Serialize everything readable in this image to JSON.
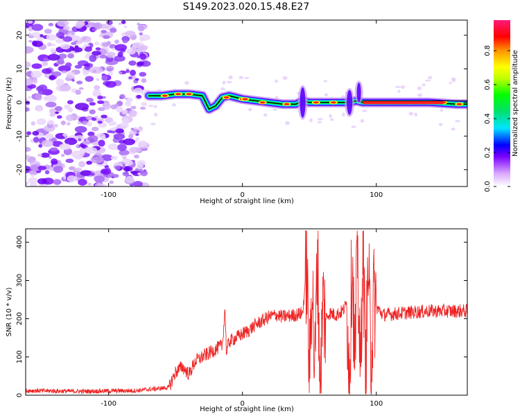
{
  "title": "S149.2023.020.15.48.E27",
  "chart_data": [
    {
      "type": "heatmap",
      "xlabel": "Height of straight line (km)",
      "ylabel": "Frequency (Hz)",
      "xlim": [
        -162,
        168
      ],
      "ylim": [
        -25,
        24.5
      ],
      "x_ticks": [
        -100,
        0,
        100
      ],
      "x_tick_labels": [
        "-100",
        "0",
        "100"
      ],
      "y_ticks": [
        -20,
        -10,
        0,
        10,
        20
      ],
      "y_tick_labels": [
        "-20",
        "-10",
        "0",
        "10",
        "20"
      ],
      "colorbar": {
        "label": "Normalized spectral amplitude",
        "range": [
          0.0,
          0.98
        ],
        "ticks": [
          0.0,
          0.2,
          0.4,
          0.6,
          0.8
        ],
        "tick_labels": [
          "0.0",
          "0.2",
          "0.4",
          "0.6",
          "0.8"
        ],
        "colormap": [
          "#f3e0fb",
          "#7a00ff",
          "#0000ff",
          "#00e5ff",
          "#00ff00",
          "#ffff00",
          "#ff8000",
          "#ff0000",
          "#ff1070"
        ]
      },
      "ridge": {
        "x": [
          -70,
          -60,
          -50,
          -40,
          -30,
          -25,
          -20,
          -15,
          -10,
          0,
          10,
          20,
          30,
          40,
          45,
          50,
          60,
          70,
          80,
          85,
          90,
          100,
          120,
          140,
          160,
          168
        ],
        "y": [
          2.0,
          2.0,
          2.5,
          2.5,
          2.0,
          -2.0,
          -1.0,
          1.5,
          2.0,
          1.0,
          0.5,
          0.0,
          -0.5,
          -0.5,
          0.5,
          0.0,
          0.0,
          0.0,
          0.0,
          0.5,
          0.0,
          0.0,
          0.0,
          0.0,
          -0.5,
          -0.5
        ]
      },
      "noise_region_x": [
        -162,
        -72
      ]
    },
    {
      "type": "line",
      "xlabel": "Height of straight line (km)",
      "ylabel": "SNR (10 * v/v)",
      "xlim": [
        -162,
        168
      ],
      "ylim": [
        0,
        435
      ],
      "x_ticks": [
        -100,
        0,
        100
      ],
      "x_tick_labels": [
        "-100",
        "0",
        "100"
      ],
      "y_ticks": [
        0,
        100,
        200,
        300,
        400
      ],
      "y_tick_labels": [
        "0",
        "100",
        "200",
        "300",
        "400"
      ],
      "color": "#ee2222",
      "x": [
        -162,
        -120,
        -80,
        -55,
        -50,
        -45,
        -40,
        -35,
        -30,
        -25,
        -20,
        -15,
        -13,
        -12,
        -10,
        -5,
        0,
        5,
        10,
        15,
        20,
        25,
        30,
        40,
        45,
        48,
        50,
        52,
        54,
        56,
        58,
        60,
        62,
        65,
        70,
        75,
        78,
        80,
        82,
        84,
        86,
        88,
        90,
        92,
        94,
        96,
        98,
        100,
        105,
        120,
        140,
        168
      ],
      "y": [
        12,
        10,
        12,
        20,
        60,
        75,
        55,
        90,
        100,
        110,
        120,
        130,
        230,
        110,
        140,
        150,
        160,
        170,
        185,
        195,
        205,
        210,
        205,
        210,
        215,
        340,
        50,
        330,
        40,
        380,
        45,
        240,
        200,
        215,
        210,
        220,
        240,
        50,
        380,
        60,
        400,
        10,
        430,
        30,
        350,
        60,
        250,
        230,
        210,
        215,
        220,
        220
      ]
    }
  ]
}
